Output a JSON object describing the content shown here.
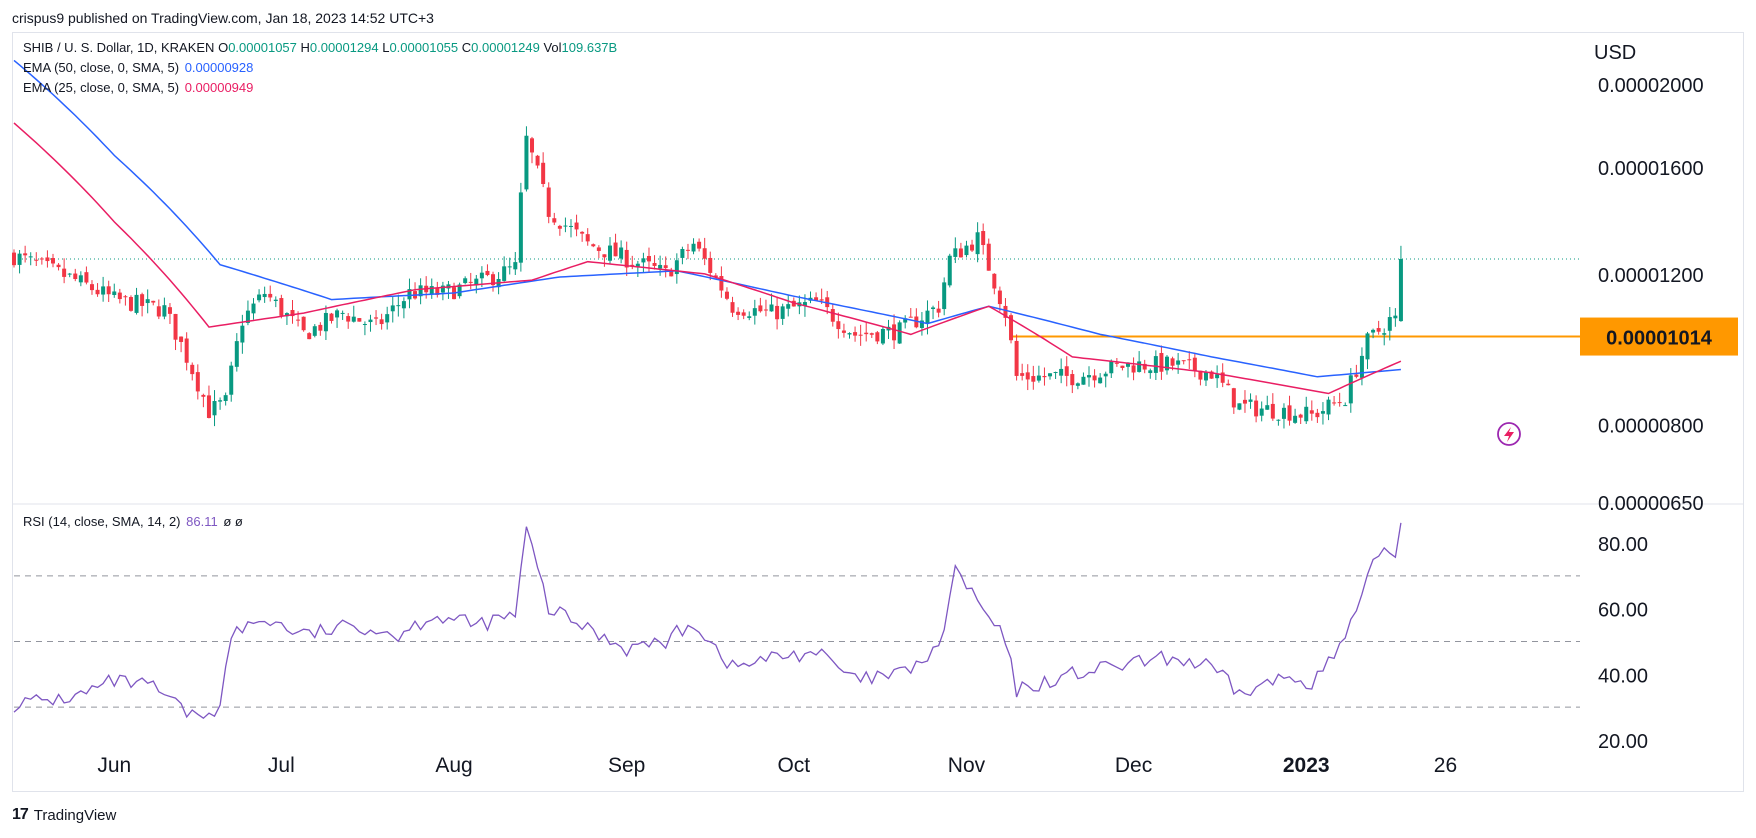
{
  "header": {
    "published": "crispus9 published on TradingView.com, Jan 18, 2023 14:52 UTC+3"
  },
  "legend": {
    "symbol": "SHIB / U. S. Dollar, 1D, KRAKEN",
    "ohlc": [
      {
        "k": "O",
        "v": "0.00001057"
      },
      {
        "k": "H",
        "v": "0.00001294"
      },
      {
        "k": "L",
        "v": "0.00001055"
      },
      {
        "k": "C",
        "v": "0.00001249"
      }
    ],
    "vol_label": "Vol",
    "vol_value": "109.637B",
    "ema50_label": "EMA (50, close, 0, SMA, 5)",
    "ema50_value": "0.00000928",
    "ema25_label": "EMA (25, close, 0, SMA, 5)",
    "ema25_value": "0.00000949",
    "rsi_label": "RSI (14, close, SMA, 14, 2)",
    "rsi_value": "86.11",
    "rsi_extra": "ø  ø"
  },
  "axis": {
    "currency": "USD",
    "price_tag": "0.00001014"
  },
  "footer": {
    "brand": "TradingView"
  },
  "colors": {
    "up": "#089981",
    "down": "#f23645",
    "ema50": "#2962ff",
    "ema25": "#e91e63",
    "rsi": "#7e57c2",
    "level": "#ff9800",
    "last_price": "#089981"
  },
  "icons": {
    "flash": "lightning-icon",
    "brand": "tradingview-logo-icon"
  },
  "chart_data": [
    {
      "type": "candlestick",
      "title": "SHIB / U. S. Dollar, 1D, KRAKEN",
      "ylabel": "USD",
      "y_scale": "log",
      "ylim": [
        6.5e-06,
        2.25e-05
      ],
      "yticks": [
        {
          "value": 6.5e-06,
          "label": "0.00000650"
        },
        {
          "value": 8e-06,
          "label": "0.00000800"
        },
        {
          "value": 1.2e-05,
          "label": "0.00001200"
        },
        {
          "value": 1.6e-05,
          "label": "0.00001600"
        },
        {
          "value": 2e-05,
          "label": "0.00002000"
        }
      ],
      "xticks": [
        {
          "date": "2022-06-01",
          "label": "Jun",
          "bold": false
        },
        {
          "date": "2022-07-01",
          "label": "Jul",
          "bold": false
        },
        {
          "date": "2022-08-01",
          "label": "Aug",
          "bold": false
        },
        {
          "date": "2022-09-01",
          "label": "Sep",
          "bold": false
        },
        {
          "date": "2022-10-01",
          "label": "Oct",
          "bold": false
        },
        {
          "date": "2022-11-01",
          "label": "Nov",
          "bold": false
        },
        {
          "date": "2022-12-01",
          "label": "Dec",
          "bold": false
        },
        {
          "date": "2023-01-01",
          "label": "2023",
          "bold": true
        },
        {
          "date": "2023-01-26",
          "label": "26",
          "bold": false
        }
      ],
      "horizontal_level": 1.014e-05,
      "last_close": 1.249e-05,
      "series": [
        {
          "name": "EMA (50, close, 0, SMA, 5)",
          "anchors": [
            [
              "2022-05-14",
              2.13e-05
            ],
            [
              "2022-06-01",
              1.65e-05
            ],
            [
              "2022-06-20",
              1.23e-05
            ],
            [
              "2022-07-10",
              1.12e-05
            ],
            [
              "2022-08-01",
              1.14e-05
            ],
            [
              "2022-08-20",
              1.19e-05
            ],
            [
              "2022-09-10",
              1.21e-05
            ],
            [
              "2022-10-01",
              1.13e-05
            ],
            [
              "2022-10-25",
              1.05e-05
            ],
            [
              "2022-11-05",
              1.1e-05
            ],
            [
              "2022-11-25",
              1.02e-05
            ],
            [
              "2022-12-15",
              9.6e-06
            ],
            [
              "2023-01-03",
              9.1e-06
            ],
            [
              "2023-01-18",
              9.28e-06
            ]
          ]
        },
        {
          "name": "EMA (25, close, 0, SMA, 5)",
          "anchors": [
            [
              "2022-05-14",
              1.8e-05
            ],
            [
              "2022-06-01",
              1.38e-05
            ],
            [
              "2022-06-18",
              1.04e-05
            ],
            [
              "2022-07-05",
              1.08e-05
            ],
            [
              "2022-07-25",
              1.15e-05
            ],
            [
              "2022-08-15",
              1.18e-05
            ],
            [
              "2022-08-25",
              1.24e-05
            ],
            [
              "2022-09-15",
              1.2e-05
            ],
            [
              "2022-10-01",
              1.11e-05
            ],
            [
              "2022-10-22",
              1.02e-05
            ],
            [
              "2022-11-05",
              1.1e-05
            ],
            [
              "2022-11-20",
              9.6e-06
            ],
            [
              "2022-12-15",
              9.2e-06
            ],
            [
              "2023-01-05",
              8.7e-06
            ],
            [
              "2023-01-18",
              9.49e-06
            ]
          ]
        },
        {
          "name": "Close path",
          "anchors": [
            [
              "2022-05-14",
              1.26e-05
            ],
            [
              "2022-05-25",
              1.18e-05
            ],
            [
              "2022-06-01",
              1.12e-05
            ],
            [
              "2022-06-10",
              1.09e-05
            ],
            [
              "2022-06-18",
              8.3e-06
            ],
            [
              "2022-06-21",
              8.5e-06
            ],
            [
              "2022-06-24",
              1.06e-05
            ],
            [
              "2022-06-28",
              1.14e-05
            ],
            [
              "2022-07-05",
              1.02e-05
            ],
            [
              "2022-07-12",
              1.08e-05
            ],
            [
              "2022-07-18",
              1.04e-05
            ],
            [
              "2022-07-24",
              1.14e-05
            ],
            [
              "2022-07-30",
              1.14e-05
            ],
            [
              "2022-08-05",
              1.17e-05
            ],
            [
              "2022-08-12",
              1.22e-05
            ],
            [
              "2022-08-14",
              1.72e-05
            ],
            [
              "2022-08-18",
              1.42e-05
            ],
            [
              "2022-08-25",
              1.3e-05
            ],
            [
              "2022-09-01",
              1.25e-05
            ],
            [
              "2022-09-08",
              1.2e-05
            ],
            [
              "2022-09-13",
              1.3e-05
            ],
            [
              "2022-09-20",
              1.1e-05
            ],
            [
              "2022-09-27",
              1.08e-05
            ],
            [
              "2022-10-05",
              1.11e-05
            ],
            [
              "2022-10-12",
              1.02e-05
            ],
            [
              "2022-10-20",
              1.03e-05
            ],
            [
              "2022-10-27",
              1.1e-05
            ],
            [
              "2022-10-29",
              1.25e-05
            ],
            [
              "2022-11-03",
              1.32e-05
            ],
            [
              "2022-11-08",
              1.08e-05
            ],
            [
              "2022-11-10",
              9.1e-06
            ],
            [
              "2022-11-20",
              9.1e-06
            ],
            [
              "2022-11-30",
              9.4e-06
            ],
            [
              "2022-12-08",
              9.4e-06
            ],
            [
              "2022-12-15",
              9.2e-06
            ],
            [
              "2022-12-20",
              8.4e-06
            ],
            [
              "2022-12-28",
              8.3e-06
            ],
            [
              "2023-01-02",
              8.2e-06
            ],
            [
              "2023-01-08",
              8.6e-06
            ],
            [
              "2023-01-12",
              1e-05
            ],
            [
              "2023-01-16",
              1.06e-05
            ],
            [
              "2023-01-17",
              1.06e-05
            ],
            [
              "2023-01-18",
              1.249e-05
            ]
          ]
        }
      ]
    },
    {
      "type": "line",
      "title": "RSI (14, close, SMA, 14, 2)",
      "ylim": [
        20,
        87
      ],
      "yticks": [
        {
          "value": 20,
          "label": "20.00"
        },
        {
          "value": 40,
          "label": "40.00"
        },
        {
          "value": 60,
          "label": "60.00"
        },
        {
          "value": 80,
          "label": "80.00"
        }
      ],
      "hlines": [
        70,
        50,
        30
      ],
      "series": [
        {
          "name": "RSI (14, close, SMA, 14, 2)",
          "anchors": [
            [
              "2022-05-14",
              31
            ],
            [
              "2022-05-25",
              33
            ],
            [
              "2022-06-01",
              38
            ],
            [
              "2022-06-08",
              36
            ],
            [
              "2022-06-15",
              27
            ],
            [
              "2022-06-20",
              30
            ],
            [
              "2022-06-22",
              52
            ],
            [
              "2022-06-28",
              57
            ],
            [
              "2022-07-05",
              52
            ],
            [
              "2022-07-15",
              55
            ],
            [
              "2022-07-22",
              52
            ],
            [
              "2022-07-28",
              58
            ],
            [
              "2022-08-05",
              55
            ],
            [
              "2022-08-12",
              58
            ],
            [
              "2022-08-14",
              84
            ],
            [
              "2022-08-18",
              60
            ],
            [
              "2022-08-25",
              54
            ],
            [
              "2022-09-01",
              48
            ],
            [
              "2022-09-08",
              50
            ],
            [
              "2022-09-13",
              56
            ],
            [
              "2022-09-20",
              42
            ],
            [
              "2022-09-27",
              45
            ],
            [
              "2022-10-05",
              47
            ],
            [
              "2022-10-12",
              38
            ],
            [
              "2022-10-20",
              40
            ],
            [
              "2022-10-27",
              47
            ],
            [
              "2022-10-30",
              72
            ],
            [
              "2022-11-03",
              62
            ],
            [
              "2022-11-08",
              50
            ],
            [
              "2022-11-10",
              35
            ],
            [
              "2022-11-20",
              40
            ],
            [
              "2022-11-30",
              43
            ],
            [
              "2022-12-08",
              45
            ],
            [
              "2022-12-15",
              42
            ],
            [
              "2022-12-20",
              34
            ],
            [
              "2022-12-28",
              39
            ],
            [
              "2023-01-02",
              38
            ],
            [
              "2023-01-06",
              45
            ],
            [
              "2023-01-10",
              58
            ],
            [
              "2023-01-14",
              78
            ],
            [
              "2023-01-17",
              76
            ],
            [
              "2023-01-18",
              86.11
            ]
          ]
        }
      ]
    }
  ]
}
